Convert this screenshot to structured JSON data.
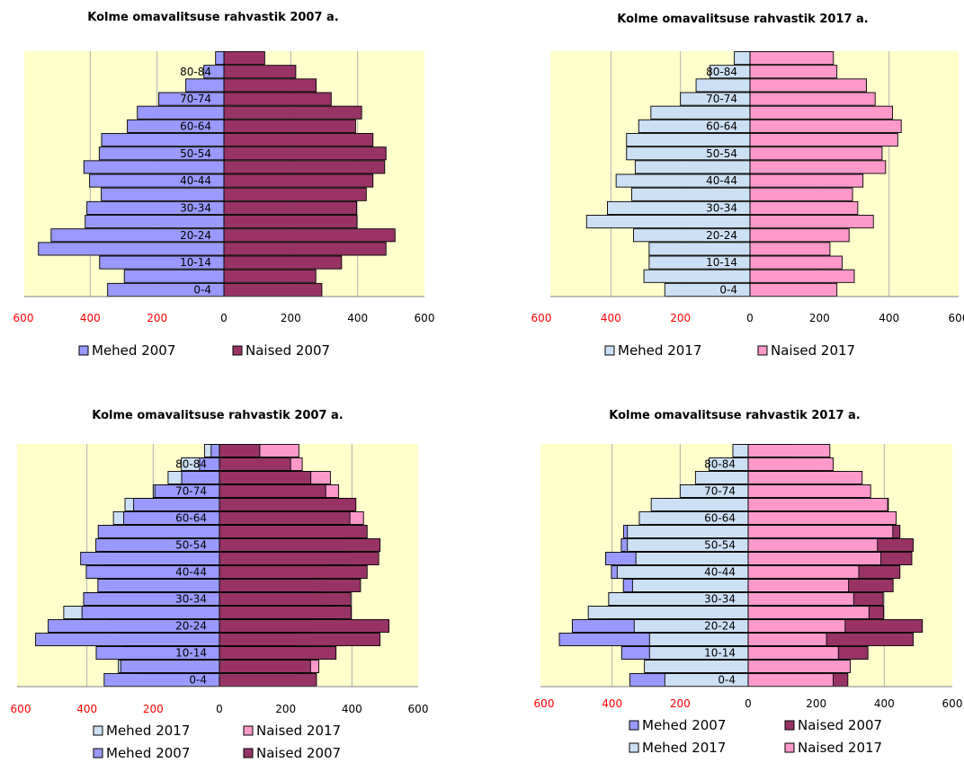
{
  "colors": {
    "mehed_2007": "#9999ff",
    "naised_2007": "#993366",
    "mehed_2017": "#cce0f5",
    "naised_2017": "#ff99cc",
    "plot_bg": "#ffffcc"
  },
  "categories_shown": [
    "0-4",
    "10-14",
    "20-24",
    "30-34",
    "40-44",
    "50-54",
    "60-64",
    "70-74",
    "80-84"
  ],
  "chart_data": [
    {
      "type": "bar",
      "orientation": "horizontal",
      "title": "Kolme omavalitsuse rahvastik 2007 a.",
      "xlim": [
        -600,
        600
      ],
      "xticks": [
        "600",
        "400",
        "200",
        "0",
        "200",
        "400",
        "600"
      ],
      "categories": [
        "0-4",
        "5-9",
        "10-14",
        "15-19",
        "20-24",
        "25-29",
        "30-34",
        "35-39",
        "40-44",
        "45-49",
        "50-54",
        "55-59",
        "60-64",
        "65-69",
        "70-74",
        "75-79",
        "80-84",
        "85+"
      ],
      "category_labels_shown": [
        "0-4",
        "10-14",
        "20-24",
        "30-34",
        "40-44",
        "50-54",
        "60-64",
        "70-74",
        "80-84"
      ],
      "series": [
        {
          "name": "Mehed 2007",
          "color_key": "mehed_2007",
          "values": [
            -348,
            -298,
            -372,
            -555,
            -517,
            -415,
            -410,
            -367,
            -402,
            -419,
            -373,
            -366,
            -289,
            -259,
            -195,
            -114,
            -60,
            -25
          ]
        },
        {
          "name": "Naised 2007",
          "color_key": "naised_2007",
          "values": [
            293,
            275,
            352,
            485,
            512,
            398,
            397,
            426,
            446,
            481,
            485,
            446,
            394,
            412,
            321,
            276,
            215,
            122
          ]
        }
      ],
      "legend": [
        "Mehed 2007",
        "Naised 2007"
      ],
      "legend_position": "bottom"
    },
    {
      "type": "bar",
      "orientation": "horizontal",
      "title": "Kolme omavalitsuse rahvastik 2017 a.",
      "xlim": [
        -600,
        600
      ],
      "xticks": [
        "600",
        "400",
        "200",
        "0",
        "200",
        "400",
        "600"
      ],
      "categories": [
        "0-4",
        "5-9",
        "10-14",
        "15-19",
        "20-24",
        "25-29",
        "30-34",
        "35-39",
        "40-44",
        "45-49",
        "50-54",
        "55-59",
        "60-64",
        "65-69",
        "70-74",
        "75-79",
        "80-84",
        "85+"
      ],
      "category_labels_shown": [
        "0-4",
        "10-14",
        "20-24",
        "30-34",
        "40-44",
        "50-54",
        "60-64",
        "70-74",
        "80-84"
      ],
      "series": [
        {
          "name": "Mehed 2017",
          "color_key": "mehed_2017",
          "values": [
            -245,
            -305,
            -290,
            -290,
            -335,
            -470,
            -410,
            -340,
            -385,
            -330,
            -355,
            -355,
            -320,
            -285,
            -200,
            -155,
            -115,
            -45
          ]
        },
        {
          "name": "Naised 2017",
          "color_key": "naised_2017",
          "values": [
            250,
            300,
            265,
            230,
            285,
            355,
            310,
            295,
            325,
            390,
            380,
            425,
            435,
            410,
            360,
            335,
            250,
            240
          ]
        }
      ],
      "legend": [
        "Mehed 2017",
        "Naised 2017"
      ],
      "legend_position": "bottom"
    },
    {
      "type": "bar",
      "orientation": "horizontal",
      "overlay": true,
      "title": "Kolme omavalitsuse rahvastik 2007 a.",
      "xlim": [
        -600,
        600
      ],
      "xticks": [
        "600",
        "400",
        "200",
        "0",
        "200",
        "400",
        "600"
      ],
      "categories": [
        "0-4",
        "5-9",
        "10-14",
        "15-19",
        "20-24",
        "25-29",
        "30-34",
        "35-39",
        "40-44",
        "45-49",
        "50-54",
        "55-59",
        "60-64",
        "65-69",
        "70-74",
        "75-79",
        "80-84",
        "85+"
      ],
      "category_labels_shown": [
        "0-4",
        "10-14",
        "20-24",
        "30-34",
        "40-44",
        "50-54",
        "60-64",
        "70-74",
        "80-84"
      ],
      "series": [
        {
          "name": "Mehed 2017",
          "color_key": "mehed_2017",
          "values": [
            -245,
            -305,
            -290,
            -290,
            -335,
            -470,
            -410,
            -340,
            -385,
            -330,
            -355,
            -355,
            -320,
            -285,
            -200,
            -155,
            -115,
            -45
          ]
        },
        {
          "name": "Naised 2017",
          "color_key": "naised_2017",
          "values": [
            250,
            300,
            265,
            230,
            285,
            355,
            310,
            295,
            325,
            390,
            380,
            425,
            435,
            410,
            360,
            335,
            250,
            240
          ]
        },
        {
          "name": "Mehed 2007",
          "color_key": "mehed_2007",
          "values": [
            -348,
            -298,
            -372,
            -555,
            -517,
            -415,
            -410,
            -367,
            -402,
            -419,
            -373,
            -366,
            -289,
            -259,
            -195,
            -114,
            -60,
            -25
          ]
        },
        {
          "name": "Naised 2007",
          "color_key": "naised_2007",
          "values": [
            293,
            275,
            352,
            485,
            512,
            398,
            397,
            426,
            446,
            481,
            485,
            446,
            394,
            412,
            321,
            276,
            215,
            122
          ]
        }
      ],
      "legend": [
        [
          "Mehed 2017",
          "Naised 2017"
        ],
        [
          "Mehed 2007",
          "Naised 2007"
        ]
      ],
      "legend_position": "bottom"
    },
    {
      "type": "bar",
      "orientation": "horizontal",
      "overlay": true,
      "title": "Kolme omavalitsuse rahvastik 2017 a.",
      "xlim": [
        -600,
        600
      ],
      "xticks": [
        "600",
        "400",
        "200",
        "0",
        "200",
        "400",
        "600"
      ],
      "categories": [
        "0-4",
        "5-9",
        "10-14",
        "15-19",
        "20-24",
        "25-29",
        "30-34",
        "35-39",
        "40-44",
        "45-49",
        "50-54",
        "55-59",
        "60-64",
        "65-69",
        "70-74",
        "75-79",
        "80-84",
        "85+"
      ],
      "category_labels_shown": [
        "0-4",
        "10-14",
        "20-24",
        "30-34",
        "40-44",
        "50-54",
        "60-64",
        "70-74",
        "80-84"
      ],
      "series": [
        {
          "name": "Mehed 2007",
          "color_key": "mehed_2007",
          "values": [
            -348,
            -298,
            -372,
            -555,
            -517,
            -415,
            -410,
            -367,
            -402,
            -419,
            -373,
            -366,
            -289,
            -259,
            -195,
            -114,
            -60,
            -25
          ]
        },
        {
          "name": "Naised 2007",
          "color_key": "naised_2007",
          "values": [
            293,
            275,
            352,
            485,
            512,
            398,
            397,
            426,
            446,
            481,
            485,
            446,
            394,
            412,
            321,
            276,
            215,
            122
          ]
        },
        {
          "name": "Mehed 2017",
          "color_key": "mehed_2017",
          "values": [
            -245,
            -305,
            -290,
            -290,
            -335,
            -470,
            -410,
            -340,
            -385,
            -330,
            -355,
            -355,
            -320,
            -285,
            -200,
            -155,
            -115,
            -45
          ]
        },
        {
          "name": "Naised 2017",
          "color_key": "naised_2017",
          "values": [
            250,
            300,
            265,
            230,
            285,
            355,
            310,
            295,
            325,
            390,
            380,
            425,
            435,
            410,
            360,
            335,
            250,
            240
          ]
        }
      ],
      "legend": [
        [
          "Mehed 2007",
          "Naised 2007"
        ],
        [
          "Mehed 2017",
          "Naised 2017"
        ]
      ],
      "legend_position": "bottom"
    }
  ]
}
